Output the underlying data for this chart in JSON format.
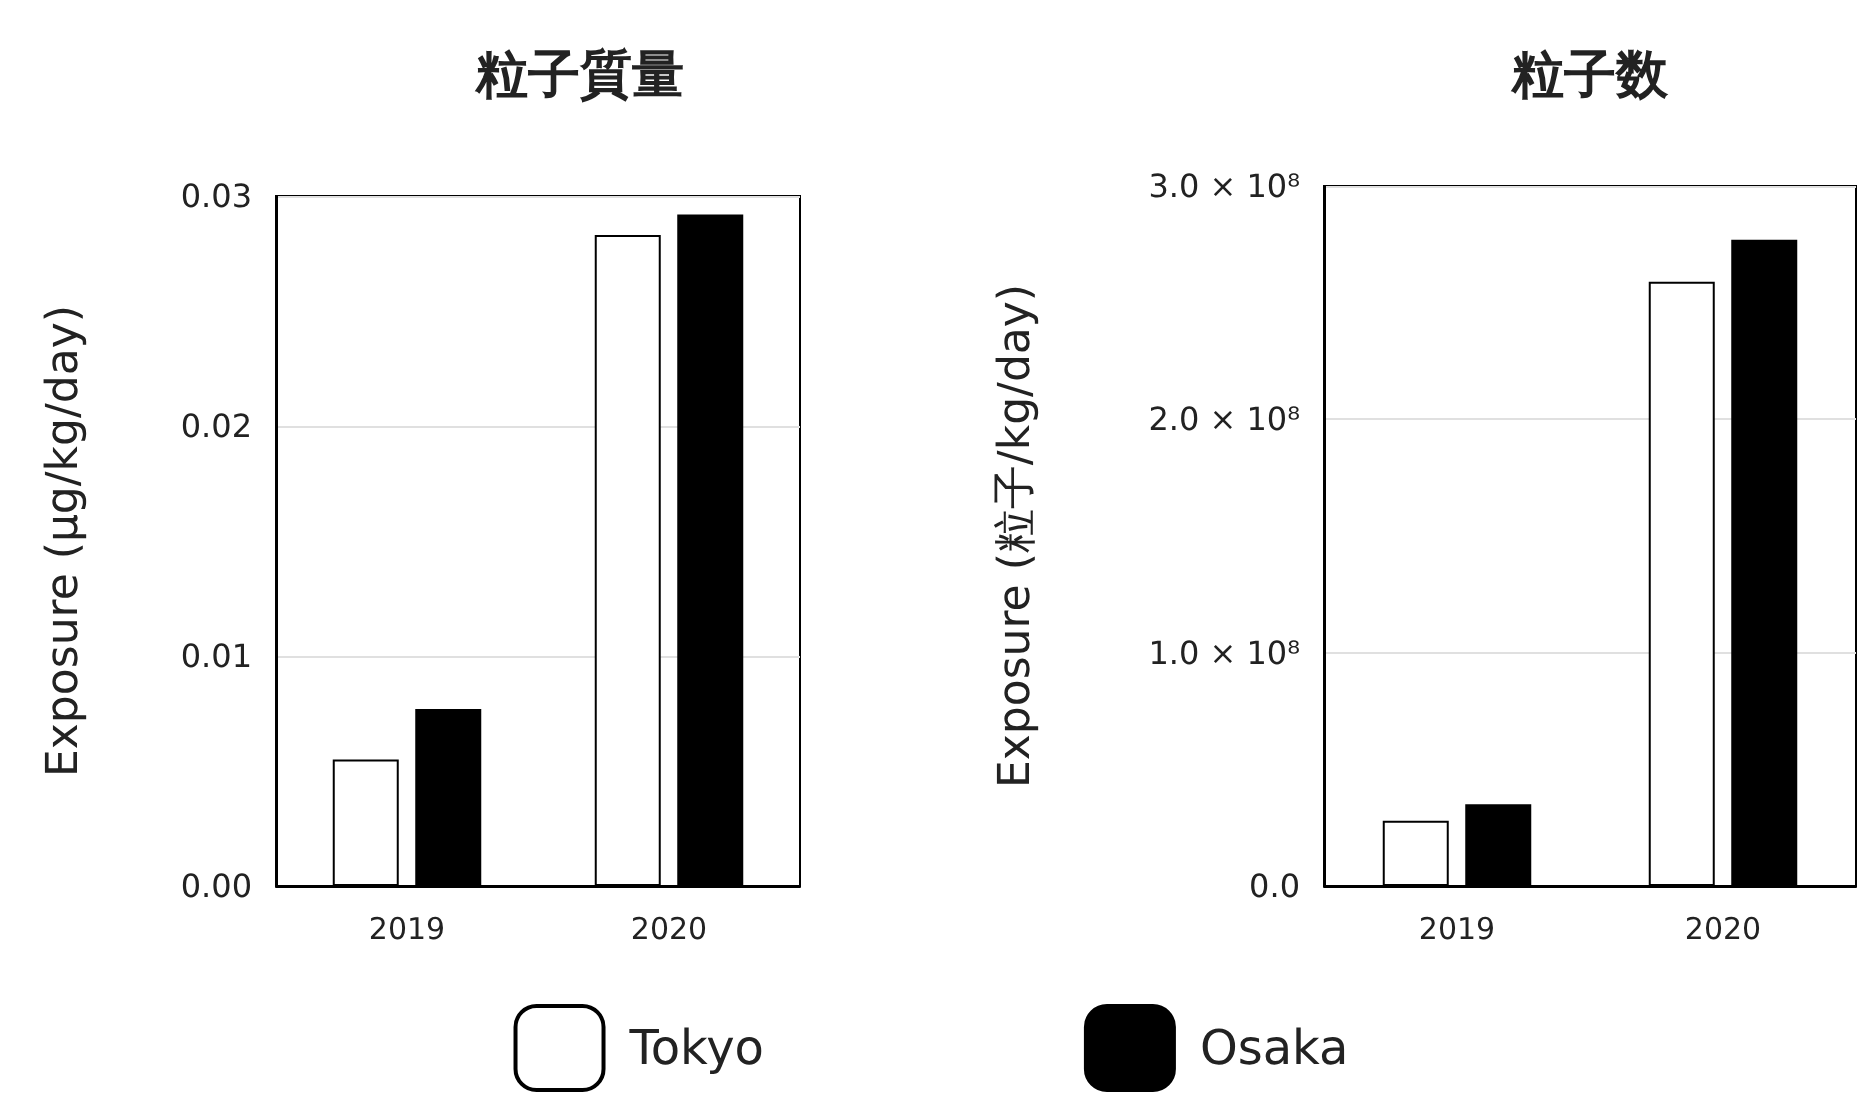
{
  "chart_data": [
    {
      "type": "bar",
      "title": "粒子質量",
      "ylabel": "Exposure (µg/kg/day)",
      "categories": [
        "2019",
        "2020"
      ],
      "series": [
        {
          "name": "Tokyo",
          "color": "#ffffff",
          "values": [
            0.0055,
            0.0283
          ]
        },
        {
          "name": "Osaka",
          "color": "#000000",
          "values": [
            0.0077,
            0.0292
          ]
        }
      ],
      "ylim": [
        0,
        0.03
      ],
      "yticks": [
        {
          "value": 0,
          "label": "0.00"
        },
        0.01,
        0.02,
        0.03
      ],
      "grid": "y",
      "legend": "bottom"
    },
    {
      "type": "bar",
      "title": "粒子数",
      "ylabel": "Exposure (粒子/kg/day)",
      "categories": [
        "2019",
        "2020"
      ],
      "series": [
        {
          "color": "#ffffff",
          "values": [
            28000000,
            259000000
          ]
        },
        {
          "color": "#000000",
          "values": [
            35000000,
            277000000
          ]
        }
      ],
      "ylim": [
        0,
        300000000
      ],
      "yticks": [
        {
          "value": 0,
          "label": "0.0"
        },
        {
          "value": 100000000,
          "label": "1.0 × 10⁸"
        },
        {
          "value": 200000000,
          "label": "2.0 × 10⁸"
        },
        {
          "value": 300000000,
          "label": "3.0 × 10⁸"
        }
      ],
      "grid": "y"
    }
  ]
}
